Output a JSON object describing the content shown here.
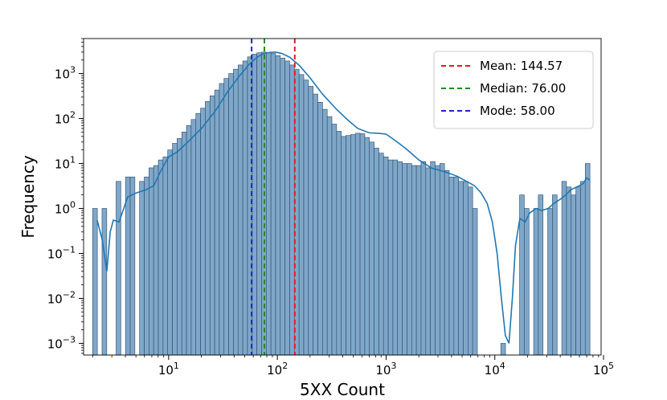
{
  "chart_data": {
    "type": "bar",
    "subtype": "histogram-with-kde",
    "xscale": "log",
    "yscale": "log",
    "xlabel": "5XX Count",
    "ylabel": "Frequency",
    "xlim": [
      1.65,
      95000
    ],
    "ylim": [
      0.00055,
      6000
    ],
    "x_ticks": [
      {
        "value": 10,
        "base": "10",
        "exp": "1"
      },
      {
        "value": 100,
        "base": "10",
        "exp": "2"
      },
      {
        "value": 1000,
        "base": "10",
        "exp": "3"
      },
      {
        "value": 10000,
        "base": "10",
        "exp": "4"
      },
      {
        "value": 100000,
        "base": "10",
        "exp": "5"
      }
    ],
    "y_ticks": [
      {
        "value": 0.001,
        "base": "10",
        "exp": "−3"
      },
      {
        "value": 0.01,
        "base": "10",
        "exp": "−2"
      },
      {
        "value": 0.1,
        "base": "10",
        "exp": "−1"
      },
      {
        "value": 1,
        "base": "10",
        "exp": "0"
      },
      {
        "value": 10,
        "base": "10",
        "exp": "1"
      },
      {
        "value": 100,
        "base": "10",
        "exp": "2"
      },
      {
        "value": 1000,
        "base": "10",
        "exp": "3"
      }
    ],
    "bar_color": "#7fa7c9",
    "bar_edge_color": "#2b4a66",
    "kde_color": "#1f77b4",
    "bins": {
      "x_start": 2.0,
      "x_end": 75000,
      "values": [
        1,
        0,
        1,
        0,
        0,
        4,
        0,
        5,
        5,
        0,
        4,
        5,
        8,
        9,
        12,
        14,
        20,
        28,
        36,
        50,
        70,
        95,
        130,
        170,
        240,
        320,
        430,
        600,
        780,
        1000,
        1250,
        1550,
        1900,
        2350,
        2700,
        2900,
        3000,
        2900,
        2800,
        2500,
        2200,
        1900,
        1550,
        1250,
        950,
        720,
        520,
        350,
        230,
        160,
        110,
        75,
        52,
        40,
        42,
        44,
        47,
        46,
        38,
        30,
        22,
        17,
        14,
        12,
        12,
        11,
        10,
        10,
        9,
        9,
        11,
        8,
        11,
        9,
        10,
        7,
        5,
        5,
        4,
        4,
        3,
        1,
        0,
        0,
        0,
        0,
        0,
        0.001,
        0,
        0,
        0,
        2,
        1,
        0,
        1,
        2,
        0,
        1,
        2,
        0,
        4,
        3,
        2,
        3,
        4,
        10
      ]
    },
    "kde": {
      "x": [
        2.2,
        2.45,
        2.7,
        2.9,
        3.1,
        3.5,
        4.2,
        5.0,
        6.2,
        7.3,
        8.5,
        10,
        12,
        15,
        20,
        27,
        35,
        45,
        55,
        65,
        75,
        85,
        95,
        110,
        130,
        160,
        200,
        260,
        350,
        450,
        550,
        700,
        850,
        1000,
        1200,
        1500,
        2000,
        2600,
        3500,
        4500,
        5500,
        6500,
        7500,
        8500,
        9500,
        10500,
        11500,
        12500,
        13500,
        14500,
        15500,
        17000,
        19000,
        21000,
        24000,
        27000,
        31000,
        35000,
        40000,
        45000,
        50000,
        55000,
        60000,
        65000,
        70000,
        75000
      ],
      "y": [
        0.55,
        0.2,
        0.04,
        0.3,
        0.55,
        0.5,
        1.8,
        2.2,
        2.6,
        3.2,
        7,
        14,
        18,
        30,
        60,
        150,
        400,
        900,
        1600,
        2300,
        2800,
        2950,
        3000,
        2800,
        2300,
        1500,
        800,
        350,
        160,
        90,
        60,
        48,
        47,
        45,
        33,
        22,
        12,
        8,
        6.5,
        5.2,
        4,
        3.2,
        2.2,
        1.3,
        0.5,
        0.1,
        0.01,
        0.0015,
        0.001,
        0.01,
        0.15,
        0.6,
        0.5,
        0.8,
        1.0,
        0.9,
        1.0,
        1.3,
        1.6,
        2.0,
        2.6,
        2.9,
        3.2,
        3.6,
        4.8,
        4.2
      ]
    },
    "reference_lines": [
      {
        "name": "Mean",
        "label": "Mean: 144.57",
        "value": 144.57,
        "color": "#e41a1c"
      },
      {
        "name": "Median",
        "label": "Median: 76.00",
        "value": 76.0,
        "color": "#238b23"
      },
      {
        "name": "Mode",
        "label": "Mode: 58.00",
        "value": 58.0,
        "color": "#1f1fd6"
      }
    ],
    "legend_position": "top-right",
    "grid": false
  }
}
